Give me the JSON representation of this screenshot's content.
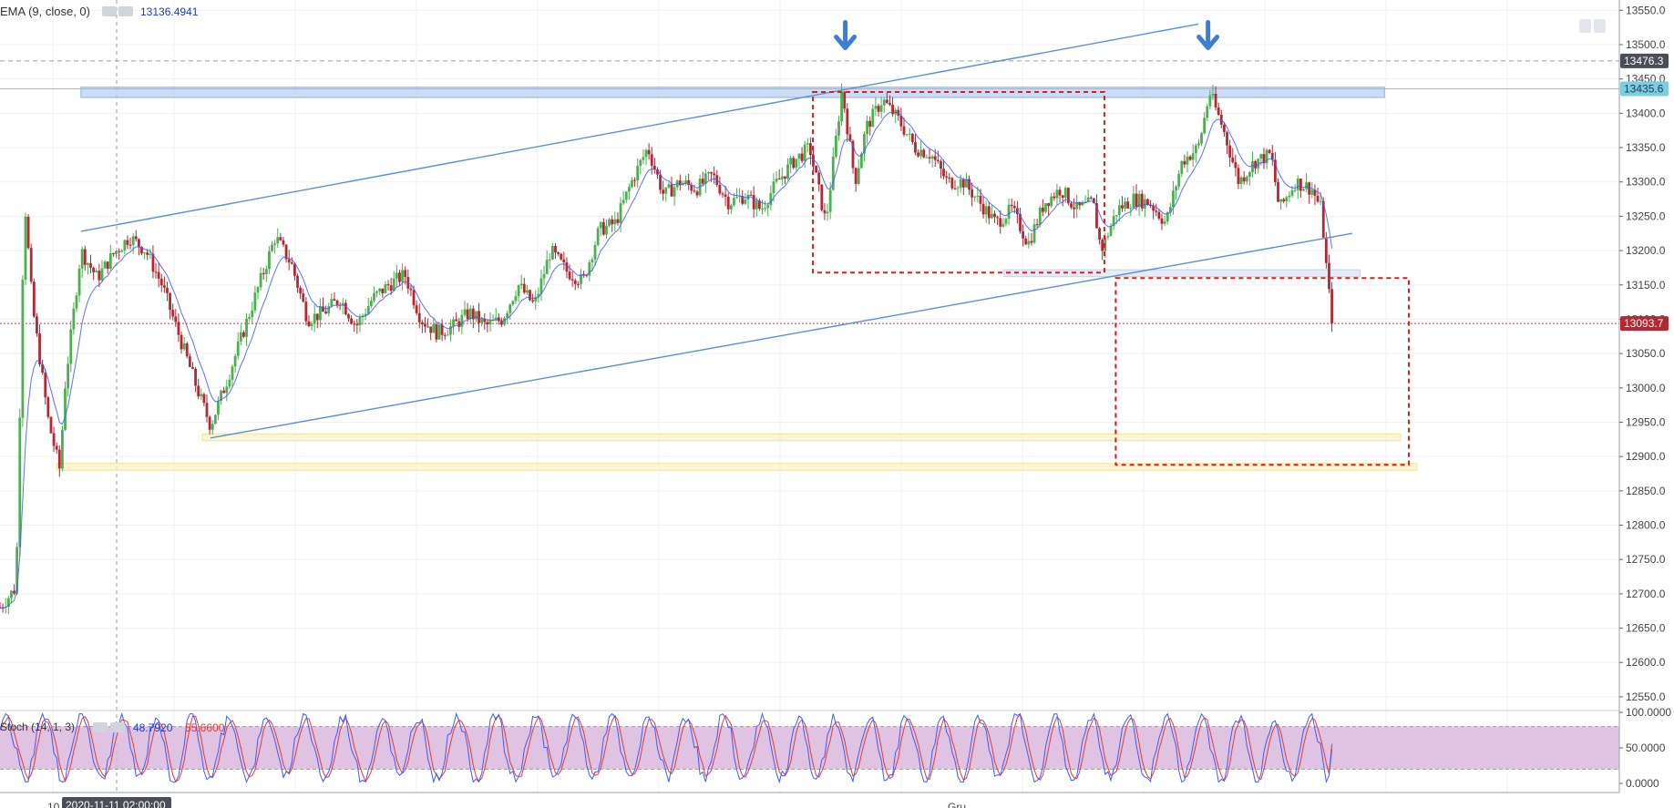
{
  "header": {
    "ema_label": "EMA (9, close, 0)",
    "ema_value": "13136.4941",
    "stoch_label": "Stoch (14, 1, 3)",
    "stoch_k_value": "48.7920",
    "stoch_d_value": "55.6600"
  },
  "colors": {
    "up_candle": "#4caf50",
    "down_candle": "#b22833",
    "ema_line": "#3d5afe",
    "trend_line": "#5b8fd8",
    "arrow": "#3a7fd5",
    "dashed_box": "#e01a1a",
    "resistance_zone": "#b9d2f0",
    "support_zone": "#fbf3c6",
    "stoch_band": "#d8b4dc",
    "stoch_k": "#3d5afe",
    "stoch_d": "#e53935"
  },
  "chart_data": [
    {
      "type": "candlestick",
      "instrument": "",
      "price_axis": {
        "ticks": [
          "13550.0",
          "13500.0",
          "13450.0",
          "13400.0",
          "13350.0",
          "13300.0",
          "13250.0",
          "13200.0",
          "13150.0",
          "13100.0",
          "13050.0",
          "13000.0",
          "12950.0",
          "12900.0",
          "12850.0",
          "12800.0",
          "12750.0",
          "12700.0",
          "12650.0",
          "12600.0",
          "12550.0"
        ],
        "range": [
          12530,
          13565
        ]
      },
      "time_axis": {
        "labels": [
          "10",
          "Gru"
        ],
        "crosshair_label": "2020-11-11 02:00:00"
      },
      "price_labels": [
        {
          "value": "13476.3",
          "style": "dark"
        },
        {
          "value": "13435.6",
          "style": "zone"
        },
        {
          "value": "13093.7",
          "style": "last"
        }
      ],
      "horizontal_levels": [
        13476.3,
        13435.6,
        13093.7
      ],
      "zones": [
        {
          "kind": "resistance",
          "y_range": [
            13423,
            13438
          ],
          "x_range": [
            5.0,
            85.5
          ]
        },
        {
          "kind": "support",
          "y_range": [
            12923,
            12933
          ],
          "x_range": [
            12.5,
            86.5
          ]
        },
        {
          "kind": "support",
          "y_range": [
            12880,
            12890
          ],
          "x_range": [
            3.5,
            87.5
          ]
        },
        {
          "kind": "light",
          "y_range": [
            13162,
            13172
          ],
          "x_range": [
            62.0,
            84.0
          ]
        }
      ],
      "trend_lines": [
        {
          "from": [
            5,
            13228
          ],
          "to": [
            74,
            13530
          ]
        },
        {
          "from": [
            13,
            12927
          ],
          "to": [
            83.5,
            13225
          ]
        }
      ],
      "dashed_boxes": [
        {
          "x_range": [
            50.2,
            68.2
          ],
          "y_range": [
            13168,
            13431
          ]
        },
        {
          "x_range": [
            68.9,
            87.0
          ],
          "y_range": [
            12888,
            13160
          ]
        }
      ],
      "arrows": [
        {
          "x": 52.2,
          "y": 13490
        },
        {
          "x": 74.6,
          "y": 13490
        }
      ],
      "ohlc_keypoints": [
        [
          0,
          12680
        ],
        [
          1,
          12710
        ],
        [
          1.5,
          13280
        ],
        [
          2,
          13120
        ],
        [
          3,
          12950
        ],
        [
          3.7,
          12880
        ],
        [
          4,
          13000
        ],
        [
          5,
          13200
        ],
        [
          6,
          13160
        ],
        [
          7,
          13195
        ],
        [
          8,
          13220
        ],
        [
          9,
          13200
        ],
        [
          10,
          13150
        ],
        [
          11,
          13080
        ],
        [
          12.3,
          12990
        ],
        [
          13,
          12945
        ],
        [
          14,
          13010
        ],
        [
          15,
          13080
        ],
        [
          16,
          13150
        ],
        [
          17,
          13220
        ],
        [
          18,
          13180
        ],
        [
          19,
          13100
        ],
        [
          20,
          13110
        ],
        [
          21,
          13130
        ],
        [
          22,
          13090
        ],
        [
          23,
          13130
        ],
        [
          24,
          13150
        ],
        [
          25,
          13165
        ],
        [
          26,
          13100
        ],
        [
          27,
          13080
        ],
        [
          28,
          13090
        ],
        [
          29,
          13110
        ],
        [
          30,
          13090
        ],
        [
          31,
          13100
        ],
        [
          32,
          13150
        ],
        [
          33,
          13120
        ],
        [
          34,
          13200
        ],
        [
          35,
          13170
        ],
        [
          36,
          13155
        ],
        [
          37,
          13230
        ],
        [
          38,
          13240
        ],
        [
          39,
          13300
        ],
        [
          40,
          13350
        ],
        [
          41,
          13280
        ],
        [
          42,
          13300
        ],
        [
          43,
          13290
        ],
        [
          44,
          13310
        ],
        [
          45,
          13270
        ],
        [
          46,
          13280
        ],
        [
          47,
          13260
        ],
        [
          48,
          13300
        ],
        [
          49,
          13330
        ],
        [
          50,
          13350
        ],
        [
          51,
          13240
        ],
        [
          52,
          13435
        ],
        [
          52.8,
          13300
        ],
        [
          53.5,
          13380
        ],
        [
          54.5,
          13420
        ],
        [
          55.5,
          13390
        ],
        [
          56.5,
          13350
        ],
        [
          57.5,
          13340
        ],
        [
          58.5,
          13300
        ],
        [
          59.5,
          13300
        ],
        [
          60.5,
          13270
        ],
        [
          61.5,
          13240
        ],
        [
          62.5,
          13260
        ],
        [
          63.5,
          13210
        ],
        [
          64.5,
          13270
        ],
        [
          65.5,
          13290
        ],
        [
          66.5,
          13260
        ],
        [
          67.5,
          13270
        ],
        [
          68,
          13200
        ],
        [
          69,
          13260
        ],
        [
          70,
          13275
        ],
        [
          71,
          13270
        ],
        [
          72,
          13240
        ],
        [
          73,
          13330
        ],
        [
          74,
          13350
        ],
        [
          74.7,
          13430
        ],
        [
          75.5,
          13380
        ],
        [
          76.5,
          13300
        ],
        [
          77.5,
          13330
        ],
        [
          78.5,
          13340
        ],
        [
          79,
          13260
        ],
        [
          80,
          13300
        ],
        [
          81,
          13290
        ],
        [
          81.6,
          13260
        ],
        [
          82,
          13150
        ],
        [
          82.3,
          13093
        ]
      ],
      "ema": {
        "period": 9,
        "last": 13136.4941
      }
    },
    {
      "type": "line",
      "name": "Stoch (14, 1, 3)",
      "y_axis": {
        "ticks": [
          "100.0000",
          "50.0000",
          "0.0000"
        ],
        "range": [
          0,
          100
        ]
      },
      "bands": [
        20,
        80
      ],
      "k_last": 48.792,
      "d_last": 55.66
    }
  ]
}
